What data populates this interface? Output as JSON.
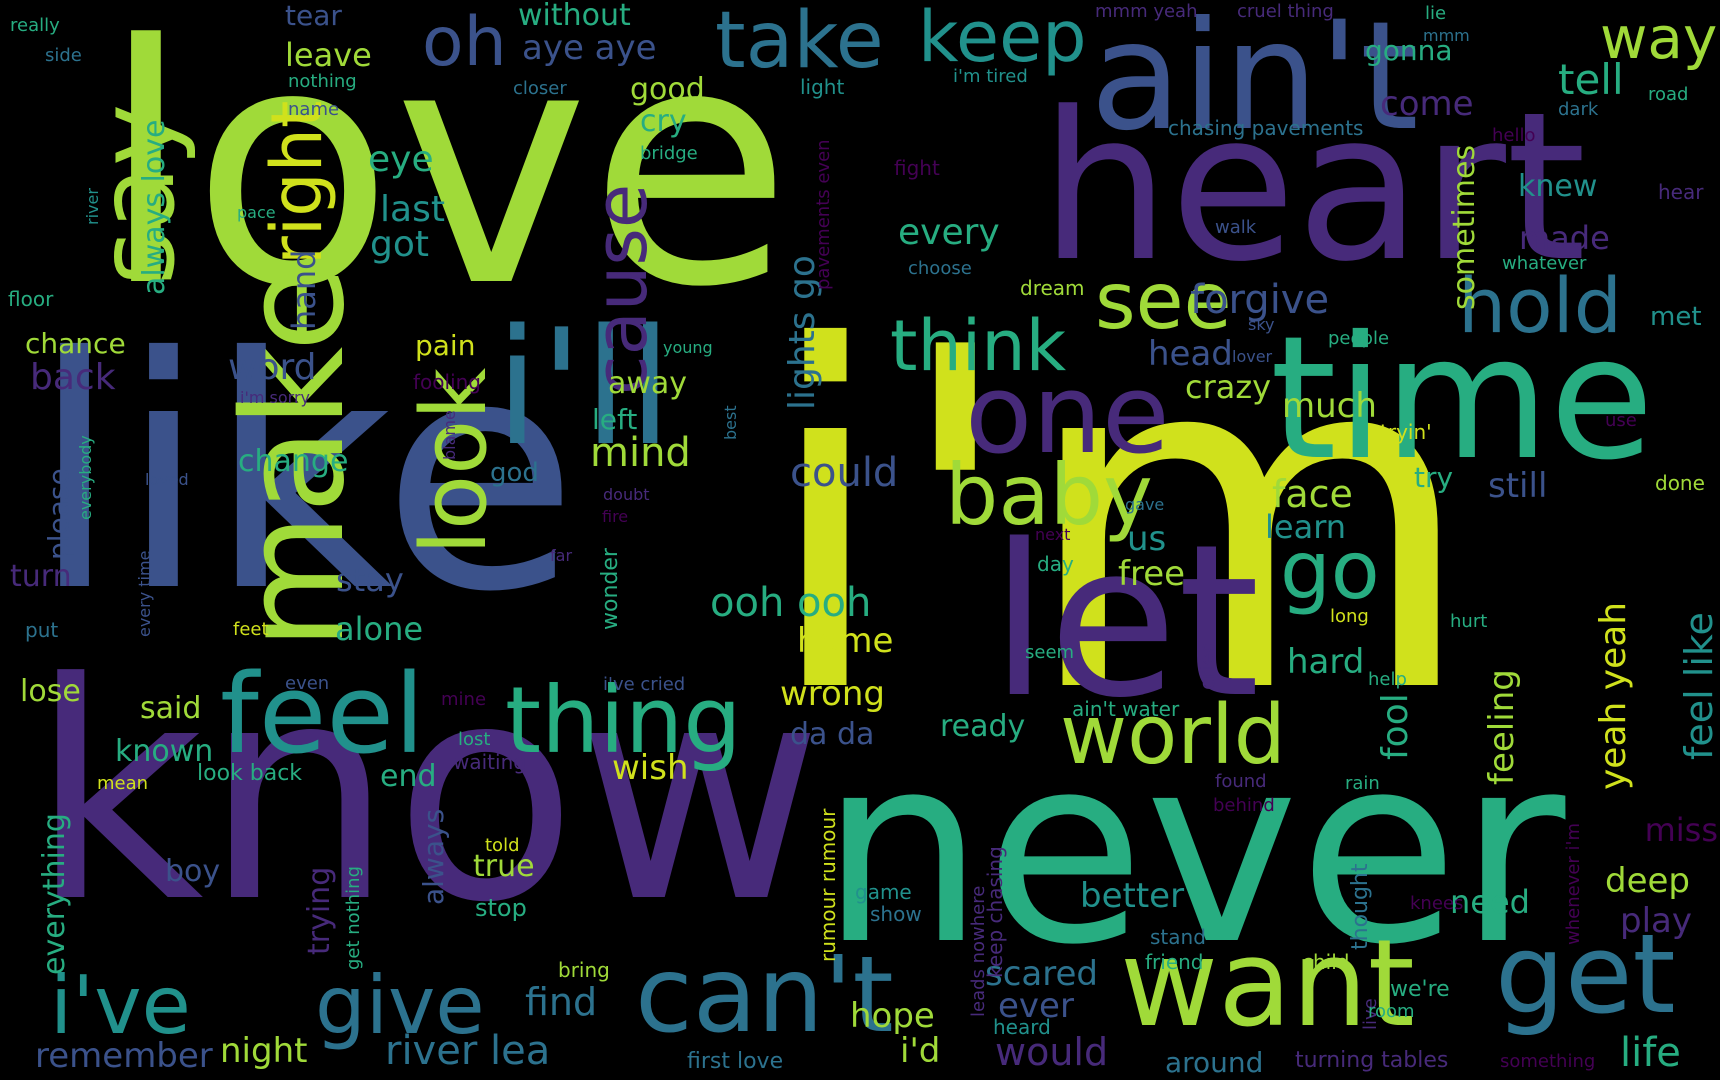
{
  "background": "#000000",
  "palette": {
    "purple": "#440154",
    "indigo": "#472a7a",
    "blue": "#3b528b",
    "steel": "#2c728e",
    "teal": "#21918c",
    "green": "#27ad81",
    "lime": "#5ec962",
    "chartreuse": "#a0da39",
    "yellow": "#d0e11c"
  },
  "words": [
    "love",
    "i'm",
    "know",
    "like",
    "never",
    "heart",
    "time",
    "ain't",
    "let",
    "make",
    "one",
    "i'll",
    "feel",
    "want",
    "can't",
    "get",
    "say",
    "thing",
    "look",
    "take",
    "baby",
    "world",
    "i've",
    "give",
    "see",
    "go",
    "keep",
    "hold",
    "think",
    "oh",
    "right",
    "way",
    "cause",
    "remember",
    "river lea",
    "night",
    "find",
    "would",
    "tell",
    "forgive",
    "lights go",
    "sometimes",
    "yeah yeah",
    "feel like",
    "always love",
    "life",
    "could",
    "ooh ooh",
    "mind",
    "eye",
    "last",
    "got",
    "every",
    "head",
    "face",
    "crazy",
    "much",
    "still",
    "learn",
    "free",
    "us",
    "wrong",
    "home",
    "wish",
    "hard",
    "fool",
    "feeling",
    "deep",
    "play",
    "better",
    "need",
    "scared",
    "ever",
    "hope",
    "i'd",
    "around",
    "turning tables",
    "first love",
    "word",
    "back",
    "chance",
    "away",
    "pain",
    "left",
    "god",
    "change",
    "please",
    "turn",
    "everything",
    "boy",
    "trying",
    "always",
    "alone",
    "stay",
    "lose",
    "said",
    "known",
    "da da",
    "ready",
    "end",
    "true",
    "stop",
    "look back",
    "leave",
    "tear",
    "without",
    "aye aye",
    "good",
    "cry",
    "come",
    "gonna",
    "made",
    "knew",
    "met",
    "hear",
    "whatever",
    "dark",
    "road",
    "lie",
    "mmm yeah",
    "cruel thing",
    "mmm",
    "i'm tired",
    "light",
    "closer",
    "nothing",
    "name",
    "side",
    "really",
    "bridge",
    "chasing pavements",
    "pavements even",
    "fight",
    "hello",
    "river",
    "pace",
    "floor",
    "hand",
    "walk",
    "choose",
    "dream",
    "sky",
    "people",
    "lover",
    "young",
    "fooling",
    "i'm sorry",
    "blame",
    "best",
    "loved",
    "everybody",
    "every time",
    "doubt",
    "fire",
    "gave",
    "next",
    "day",
    "far",
    "wonder",
    "put",
    "feet",
    "seem",
    "leads nowhere",
    "long",
    "hurt",
    "help",
    "even",
    "i've cried",
    "mine",
    "ain't water",
    "cried",
    "lost",
    "waiting",
    "mean",
    "found",
    "rain",
    "behind",
    "told",
    "rumour rumour",
    "keep chasing",
    "game",
    "show",
    "get nothing",
    "knees",
    "whenever i'm",
    "miss",
    "thought",
    "stand",
    "friend",
    "child",
    "bring",
    "heard",
    "live",
    "room",
    "we're",
    "something",
    "tryin'",
    "use",
    "done",
    "try",
    "sometimes"
  ]
}
